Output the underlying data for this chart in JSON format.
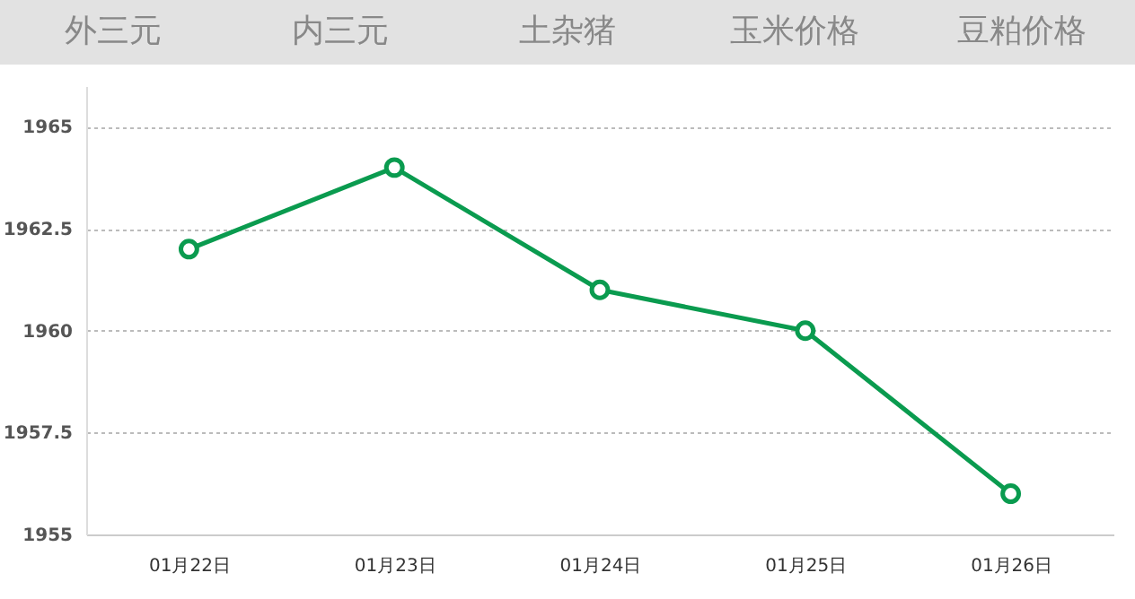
{
  "chart_data": {
    "type": "line",
    "categories": [
      "01月22日",
      "01月23日",
      "01月24日",
      "01月25日",
      "01月26日"
    ],
    "series": [
      {
        "color": "#0a9b4f",
        "values": [
          1962,
          1964,
          1961,
          1960,
          1956
        ]
      }
    ],
    "ylim": [
      1955,
      1966
    ],
    "yticks": [
      1955,
      1957.5,
      1960,
      1962.5,
      1965
    ],
    "grid": "y",
    "marker": "circle",
    "line_style": "solid",
    "annotations": [
      "外三元",
      "内三元",
      "土杂猪",
      "玉米价格",
      "豆粕价格"
    ]
  }
}
